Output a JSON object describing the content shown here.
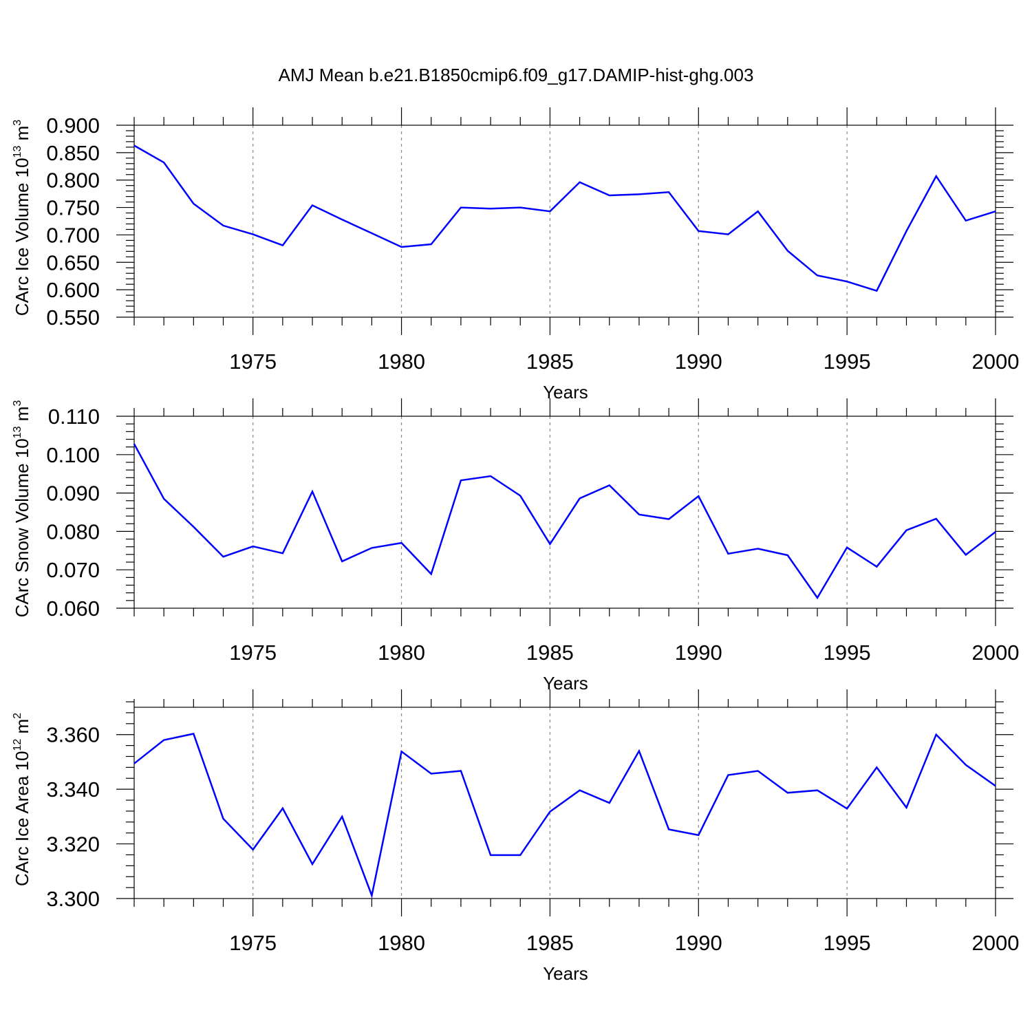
{
  "title": "AMJ Mean b.e21.B1850cmip6.f09_g17.DAMIP-hist-ghg.003",
  "colors": {
    "line": "#0000ff",
    "axis": "#000000",
    "grid": "#888888"
  },
  "chart_data": [
    {
      "type": "line",
      "ylabel": "CArc Ice Volume 10",
      "ylabel_exp": "13",
      "ylabel_unit": " m",
      "ylabel_unit_exp": "3",
      "xlabel": "Years",
      "xlim": [
        1971,
        2000
      ],
      "ylim": [
        0.55,
        0.9
      ],
      "yticks": [
        0.55,
        0.6,
        0.65,
        0.7,
        0.75,
        0.8,
        0.85,
        0.9
      ],
      "yticklabels": [
        "0.550",
        "0.600",
        "0.650",
        "0.700",
        "0.750",
        "0.800",
        "0.850",
        "0.900"
      ],
      "xticks": [
        1975,
        1980,
        1985,
        1990,
        1995,
        2000
      ],
      "xticklabels": [
        "1975",
        "1980",
        "1985",
        "1990",
        "1995",
        "2000"
      ],
      "x": [
        1971,
        1972,
        1973,
        1974,
        1975,
        1976,
        1977,
        1978,
        1979,
        1980,
        1981,
        1982,
        1983,
        1984,
        1985,
        1986,
        1987,
        1988,
        1989,
        1990,
        1991,
        1992,
        1993,
        1994,
        1995,
        1996,
        1997,
        1998,
        1999,
        2000
      ],
      "values": [
        0.863,
        0.832,
        0.757,
        0.717,
        0.701,
        0.681,
        0.754,
        0.728,
        0.703,
        0.678,
        0.683,
        0.75,
        0.748,
        0.75,
        0.743,
        0.796,
        0.772,
        0.774,
        0.778,
        0.707,
        0.701,
        0.743,
        0.671,
        0.626,
        0.615,
        0.598,
        0.707,
        0.807,
        0.726,
        0.743
      ]
    },
    {
      "type": "line",
      "ylabel": "CArc Snow Volume 10",
      "ylabel_exp": "13",
      "ylabel_unit": " m",
      "ylabel_unit_exp": "3",
      "xlabel": "Years",
      "xlim": [
        1971,
        2000
      ],
      "ylim": [
        0.06,
        0.11
      ],
      "yticks": [
        0.06,
        0.07,
        0.08,
        0.09,
        0.1,
        0.11
      ],
      "yticklabels": [
        "0.060",
        "0.070",
        "0.080",
        "0.090",
        "0.100",
        "0.110"
      ],
      "xticks": [
        1975,
        1980,
        1985,
        1990,
        1995,
        2000
      ],
      "xticklabels": [
        "1975",
        "1980",
        "1985",
        "1990",
        "1995",
        "2000"
      ],
      "x": [
        1971,
        1972,
        1973,
        1974,
        1975,
        1976,
        1977,
        1978,
        1979,
        1980,
        1981,
        1982,
        1983,
        1984,
        1985,
        1986,
        1987,
        1988,
        1989,
        1990,
        1991,
        1992,
        1993,
        1994,
        1995,
        1996,
        1997,
        1998,
        1999,
        2000
      ],
      "values": [
        0.1028,
        0.0885,
        0.0812,
        0.0734,
        0.0761,
        0.0743,
        0.0904,
        0.0722,
        0.0757,
        0.077,
        0.0689,
        0.0933,
        0.0944,
        0.0893,
        0.0767,
        0.0886,
        0.092,
        0.0844,
        0.0832,
        0.0892,
        0.0742,
        0.0755,
        0.0738,
        0.0627,
        0.0758,
        0.0708,
        0.0803,
        0.0833,
        0.0739,
        0.0799
      ]
    },
    {
      "type": "line",
      "ylabel": "CArc Ice Area 10",
      "ylabel_exp": "12",
      "ylabel_unit": " m",
      "ylabel_unit_exp": "2",
      "xlabel": "Years",
      "xlim": [
        1971,
        2000
      ],
      "ylim": [
        3.3,
        3.37
      ],
      "yticks": [
        3.3,
        3.32,
        3.34,
        3.36
      ],
      "yticklabels": [
        "3.300",
        "3.320",
        "3.340",
        "3.360"
      ],
      "xticks": [
        1975,
        1980,
        1985,
        1990,
        1995,
        2000
      ],
      "xticklabels": [
        "1975",
        "1980",
        "1985",
        "1990",
        "1995",
        "2000"
      ],
      "x": [
        1971,
        1972,
        1973,
        1974,
        1975,
        1976,
        1977,
        1978,
        1979,
        1980,
        1981,
        1982,
        1983,
        1984,
        1985,
        1986,
        1987,
        1988,
        1989,
        1990,
        1991,
        1992,
        1993,
        1994,
        1995,
        1996,
        1997,
        1998,
        1999,
        2000
      ],
      "values": [
        3.3494,
        3.358,
        3.3603,
        3.3292,
        3.3179,
        3.333,
        3.3126,
        3.33,
        3.3011,
        3.3538,
        3.3457,
        3.3467,
        3.3159,
        3.3159,
        3.3318,
        3.3396,
        3.335,
        3.354,
        3.3253,
        3.3232,
        3.3452,
        3.3467,
        3.3387,
        3.3396,
        3.3329,
        3.348,
        3.3333,
        3.36,
        3.3489,
        3.3412
      ]
    }
  ]
}
